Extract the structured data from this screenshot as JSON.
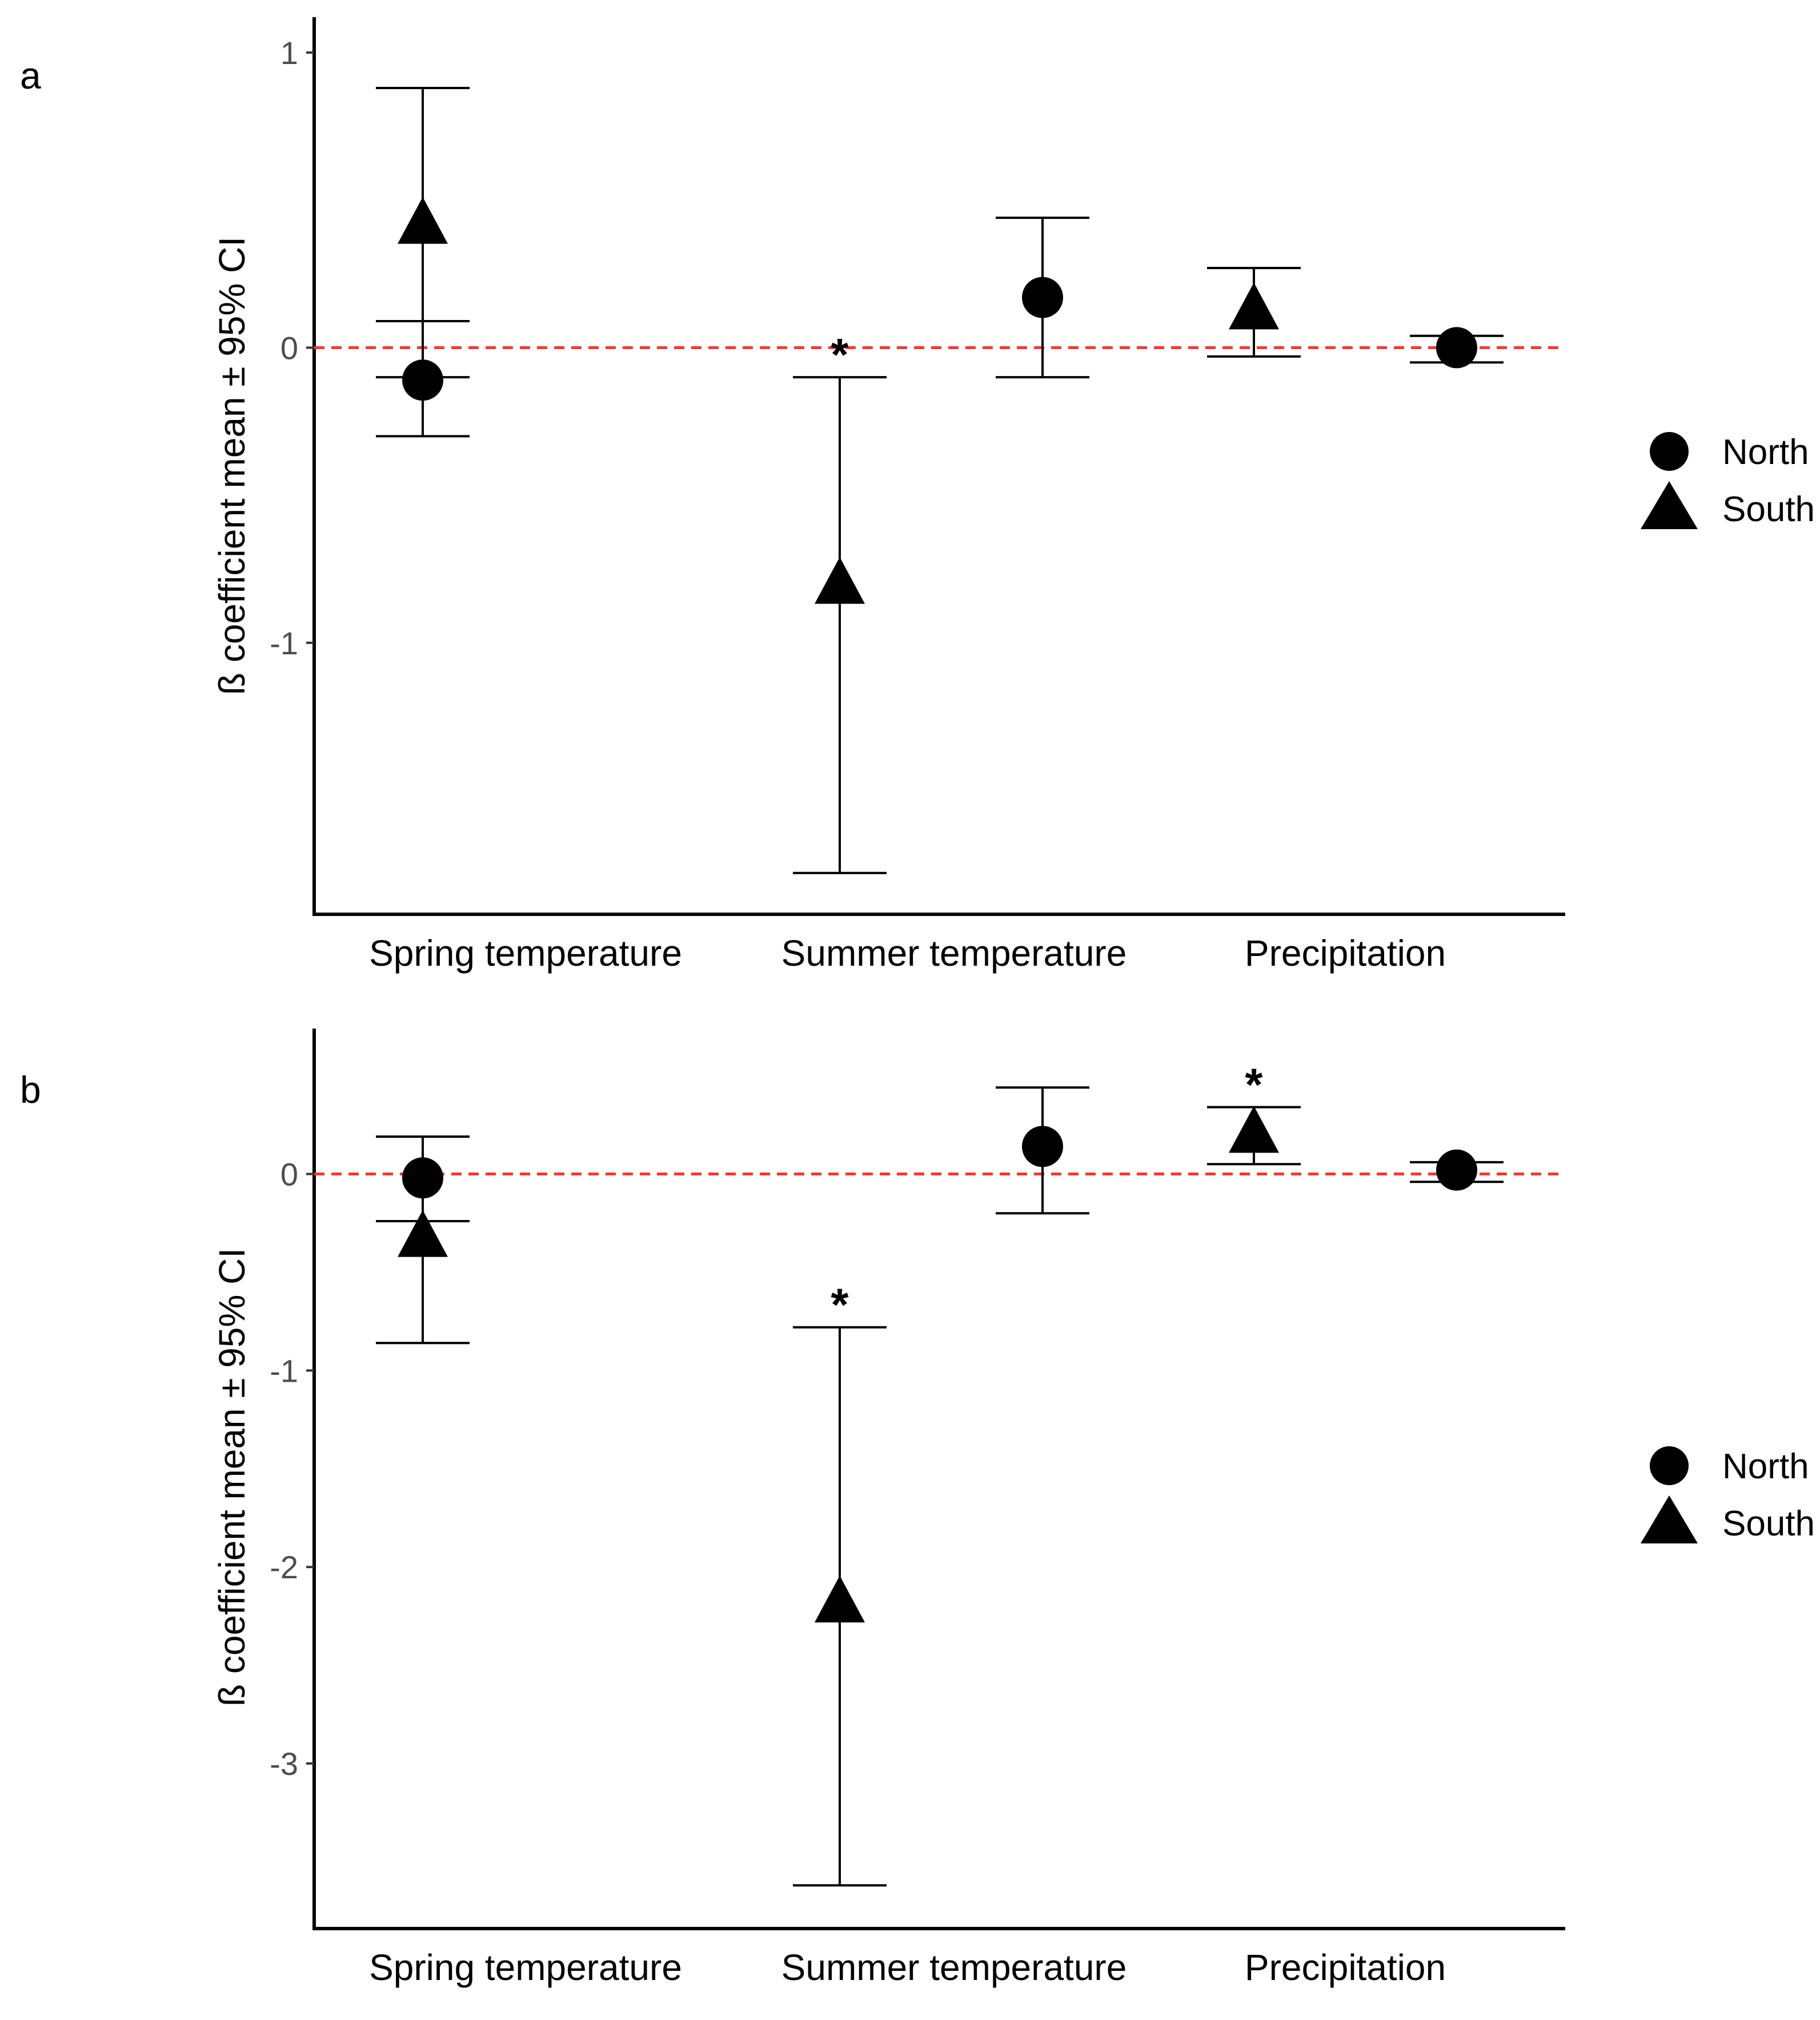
{
  "chart_data": [
    {
      "panel": "a",
      "type": "scatter",
      "title": "",
      "xlabel": "",
      "ylabel": "ß coefficient mean ± 95% CI",
      "ylim": [
        -1.92,
        1.12
      ],
      "yticks": [
        -1,
        0,
        1
      ],
      "ytick_labels": [
        "-1",
        "0",
        "1"
      ],
      "categories": [
        "Spring temperature",
        "Summer temperature",
        "Precipitation"
      ],
      "reference_line": 0,
      "legend": {
        "position": "right",
        "entries": [
          "North",
          "South"
        ]
      },
      "series": [
        {
          "name": "North",
          "marker": "circle",
          "points": [
            {
              "category": "Spring temperature",
              "mean": -0.11,
              "low": -0.3,
              "high": 0.09,
              "significant": false
            },
            {
              "category": "Summer temperature",
              "mean": 0.17,
              "low": -0.1,
              "high": 0.44,
              "significant": false
            },
            {
              "category": "Precipitation",
              "mean": 0.0,
              "low": -0.05,
              "high": 0.04,
              "significant": false
            }
          ]
        },
        {
          "name": "South",
          "marker": "triangle",
          "points": [
            {
              "category": "Spring temperature",
              "mean": 0.42,
              "low": -0.1,
              "high": 0.88,
              "significant": false
            },
            {
              "category": "Summer temperature",
              "mean": -0.8,
              "low": -1.78,
              "high": -0.1,
              "significant": true
            },
            {
              "category": "Precipitation",
              "mean": 0.13,
              "low": -0.03,
              "high": 0.27,
              "significant": false
            }
          ]
        }
      ]
    },
    {
      "panel": "b",
      "type": "scatter",
      "title": "",
      "xlabel": "",
      "ylabel": "ß coefficient mean ± 95% CI",
      "ylim": [
        -3.84,
        0.74
      ],
      "yticks": [
        -3,
        -2,
        -1,
        0
      ],
      "ytick_labels": [
        "-3",
        "-2",
        "-1",
        "0"
      ],
      "categories": [
        "Spring temperature",
        "Summer temperature",
        "Precipitation"
      ],
      "reference_line": 0,
      "legend": {
        "position": "right",
        "entries": [
          "North",
          "South"
        ]
      },
      "series": [
        {
          "name": "North",
          "marker": "circle",
          "points": [
            {
              "category": "Spring temperature",
              "mean": -0.02,
              "low": -0.24,
              "high": 0.19,
              "significant": false
            },
            {
              "category": "Summer temperature",
              "mean": 0.14,
              "low": -0.2,
              "high": 0.44,
              "significant": false
            },
            {
              "category": "Precipitation",
              "mean": 0.02,
              "low": -0.04,
              "high": 0.06,
              "significant": false
            }
          ]
        },
        {
          "name": "South",
          "marker": "triangle",
          "points": [
            {
              "category": "Spring temperature",
              "mean": -0.32,
              "low": -0.86,
              "high": 0.19,
              "significant": false
            },
            {
              "category": "Summer temperature",
              "mean": -2.18,
              "low": -3.62,
              "high": -0.78,
              "significant": true
            },
            {
              "category": "Precipitation",
              "mean": 0.21,
              "low": 0.05,
              "high": 0.34,
              "significant": true
            }
          ]
        }
      ]
    }
  ]
}
